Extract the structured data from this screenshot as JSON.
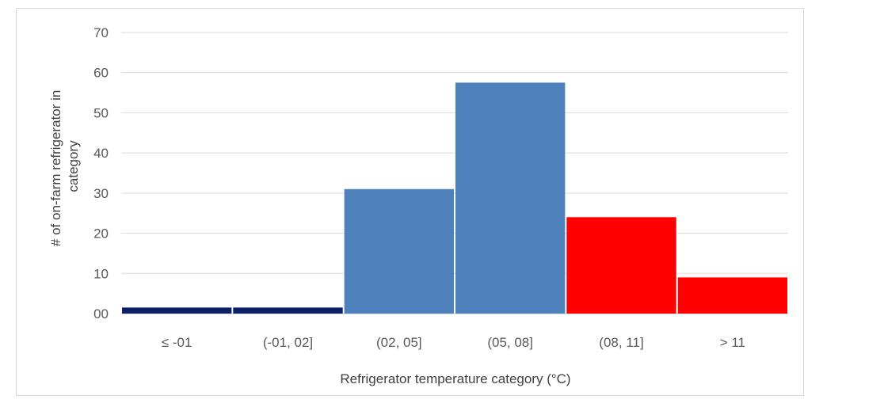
{
  "chart_data": {
    "type": "bar",
    "title": "",
    "xlabel": "Refrigerator temperature category (°C)",
    "ylabel_lines": [
      "# of on-farm refrigerator in",
      "category"
    ],
    "categories": [
      "≤ -01",
      "(-01, 02]",
      "(02, 05]",
      "(05, 08]",
      "(08, 11]",
      "> 11"
    ],
    "values": [
      1.5,
      1.5,
      31,
      57.5,
      24,
      9
    ],
    "bar_colors": [
      "#0d2063",
      "#0d2063",
      "#4f81bd",
      "#4f81bd",
      "#ff0000",
      "#ff0000"
    ],
    "ylim": [
      0,
      70
    ],
    "y_ticks": [
      0,
      10,
      20,
      30,
      40,
      50,
      60,
      70
    ],
    "y_tick_labels": [
      "00",
      "10",
      "20",
      "30",
      "40",
      "50",
      "60",
      "70"
    ],
    "grid": true,
    "legend": "none"
  },
  "colors": {
    "gridline": "#d9d9d9",
    "axis_line": "#bfbfbf",
    "tick_text": "#595959",
    "title_text": "#404040"
  }
}
